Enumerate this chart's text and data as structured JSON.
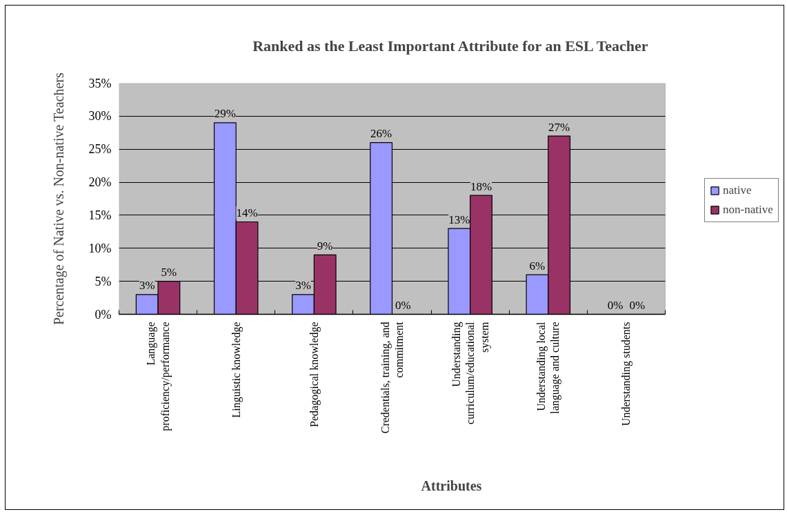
{
  "chart_data": {
    "type": "bar",
    "title": "Ranked as the Least Important Attribute for an ESL Teacher",
    "xlabel": "Attributes",
    "ylabel": "Percentage of Native vs. Non-native Teachers",
    "categories": [
      "Language proficiency/performance",
      "Linguistic knowledge",
      "Pedagogical knowledge",
      "Credentials, training, and commitment",
      "Understanding curriculum/educational system",
      "Understanding local language and culture",
      "Understanding students"
    ],
    "series": [
      {
        "name": "native",
        "color": "#9999ff",
        "values": [
          3,
          29,
          3,
          26,
          13,
          6,
          0
        ],
        "value_labels": [
          "3%",
          "29%",
          "3%",
          "26%",
          "13%",
          "6%",
          "0%"
        ]
      },
      {
        "name": "non-native",
        "color": "#993366",
        "values": [
          5,
          14,
          9,
          0,
          18,
          27,
          0
        ],
        "value_labels": [
          "5%",
          "14%",
          "9%",
          "0%",
          "18%",
          "27%",
          "0%"
        ]
      }
    ],
    "ylim": [
      0,
      35
    ],
    "yticks": [
      {
        "value": 0,
        "label": "0%"
      },
      {
        "value": 5,
        "label": "5%"
      },
      {
        "value": 10,
        "label": "10%"
      },
      {
        "value": 15,
        "label": "15%"
      },
      {
        "value": 20,
        "label": "20%"
      },
      {
        "value": 25,
        "label": "25%"
      },
      {
        "value": 30,
        "label": "30%"
      },
      {
        "value": 35,
        "label": "35%"
      }
    ],
    "grid": "y",
    "legend": "right"
  }
}
